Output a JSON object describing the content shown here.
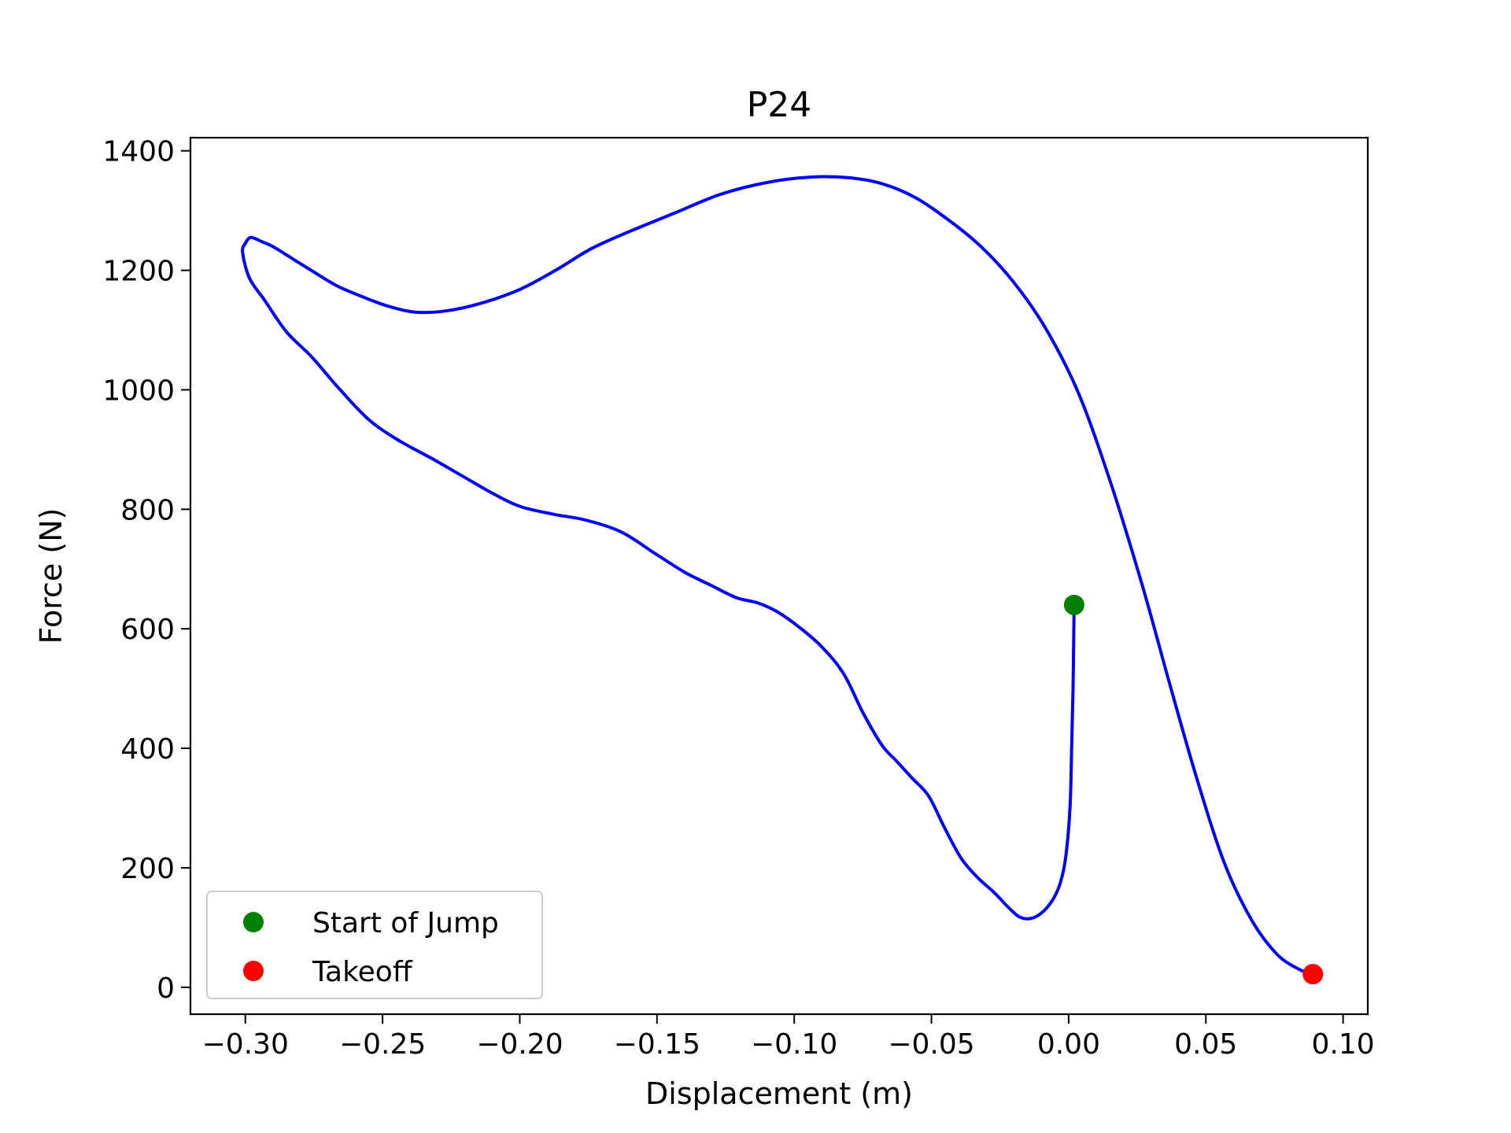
{
  "chart_data": {
    "type": "line",
    "title": "P24",
    "xlabel": "Displacement (m)",
    "ylabel": "Force (N)",
    "xlim": [
      -0.32,
      0.109
    ],
    "ylim": [
      -45,
      1422
    ],
    "xticks": [
      -0.3,
      -0.25,
      -0.2,
      -0.15,
      -0.1,
      -0.05,
      0.0,
      0.05,
      0.1
    ],
    "xtick_labels": [
      "−0.30",
      "−0.25",
      "−0.20",
      "−0.15",
      "−0.10",
      "−0.05",
      "0.00",
      "0.05",
      "0.10"
    ],
    "yticks": [
      0,
      200,
      400,
      600,
      800,
      1000,
      1200,
      1400
    ],
    "ytick_labels": [
      "0",
      "200",
      "400",
      "600",
      "800",
      "1000",
      "1200",
      "1400"
    ],
    "grid": false,
    "legend_position": "lower-left",
    "series": [
      {
        "color": "#0000ff",
        "x": [
          0.002,
          0.0019,
          0.0016,
          0.0011,
          0.0005,
          -0.001,
          -0.003,
          -0.006,
          -0.01,
          -0.014,
          -0.018,
          -0.022,
          -0.027,
          -0.033,
          -0.039,
          -0.045,
          -0.051,
          -0.057,
          -0.063,
          -0.068,
          -0.075,
          -0.082,
          -0.09,
          -0.098,
          -0.106,
          -0.113,
          -0.121,
          -0.13,
          -0.14,
          -0.151,
          -0.163,
          -0.176,
          -0.188,
          -0.2,
          -0.21,
          -0.221,
          -0.232,
          -0.244,
          -0.255,
          -0.266,
          -0.276,
          -0.285,
          -0.293,
          -0.2985,
          -0.301,
          -0.3,
          -0.298,
          -0.294,
          -0.29,
          -0.283,
          -0.276,
          -0.267,
          -0.258,
          -0.248,
          -0.238,
          -0.227,
          -0.214,
          -0.2,
          -0.187,
          -0.174,
          -0.16,
          -0.144,
          -0.127,
          -0.11,
          -0.094,
          -0.08,
          -0.068,
          -0.056,
          -0.044,
          -0.032,
          -0.02,
          -0.008,
          0.004,
          0.016,
          0.027,
          0.037,
          0.047,
          0.057,
          0.067,
          0.076,
          0.084,
          0.089
        ],
        "y": [
          640,
          600,
          500,
          400,
          300,
          220,
          175,
          145,
          124,
          115,
          118,
          134,
          158,
          183,
          215,
          265,
          320,
          350,
          380,
          405,
          460,
          525,
          570,
          602,
          628,
          643,
          652,
          672,
          695,
          727,
          762,
          782,
          792,
          805,
          827,
          856,
          885,
          915,
          950,
          1003,
          1056,
          1097,
          1150,
          1187,
          1230,
          1245,
          1255,
          1248,
          1240,
          1220,
          1200,
          1175,
          1157,
          1140,
          1130,
          1132,
          1145,
          1168,
          1200,
          1236,
          1265,
          1295,
          1327,
          1347,
          1356,
          1355,
          1345,
          1322,
          1285,
          1240,
          1180,
          1100,
          990,
          835,
          670,
          505,
          345,
          205,
          110,
          55,
          30,
          22
        ]
      }
    ],
    "markers": [
      {
        "label": "Start of Jump",
        "x": 0.002,
        "y": 640,
        "color": "#008000"
      },
      {
        "label": "Takeoff",
        "x": 0.089,
        "y": 22,
        "color": "#ff0000"
      }
    ]
  }
}
